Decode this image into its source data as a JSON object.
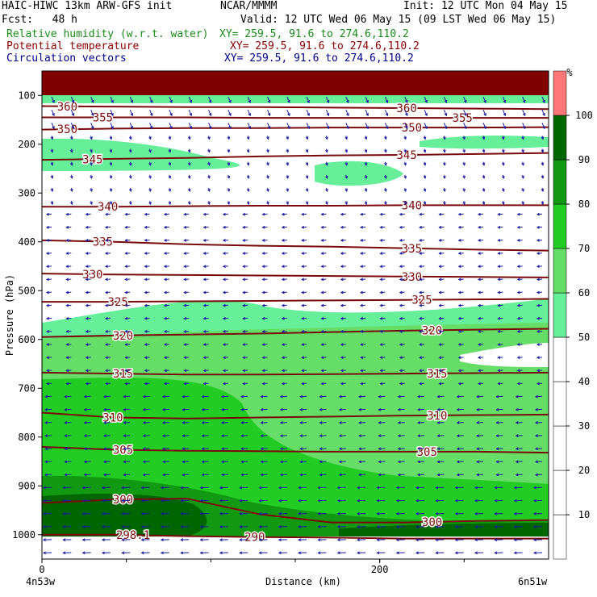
{
  "header": {
    "model": "HAIC-HIWC 13km ARW-GFS init",
    "org": "NCAR/MMMM",
    "init": "Init: 12 UTC Mon 04 May 15",
    "fcst": "Fcst:   48 h",
    "valid": "Valid: 12 UTC Wed 06 May 15 (09 LST Wed 06 May 15)",
    "rh_label": "Relative humidity (w.r.t. water)",
    "rh_xy": "XY= 259.5, 91.6 to 274.6,110.2",
    "theta_label": "Potential temperature",
    "theta_xy": "XY= 259.5, 91.6 to 274.6,110.2",
    "circ_label": "Circulation vectors",
    "circ_xy": "XY= 259.5, 91.6 to 274.6,110.2"
  },
  "chart_data": {
    "type": "heatmap",
    "title": "Relative humidity (w.r.t. water)",
    "xlabel": "Distance (km)",
    "ylabel": "Pressure (hPa)",
    "x_ticks": [
      "0",
      "200"
    ],
    "x_start_label": "4n53w",
    "x_end_label": "6n51w",
    "xlim": [
      0,
      300
    ],
    "y_ticks": [
      "100",
      "200",
      "300",
      "400",
      "500",
      "600",
      "700",
      "800",
      "900",
      "1000"
    ],
    "ylim": [
      1050,
      50
    ],
    "colorbar": {
      "unit": "%",
      "levels": [
        10,
        20,
        30,
        40,
        50,
        60,
        70,
        80,
        90,
        100
      ],
      "colors": [
        "#ffffff",
        "#ffffff",
        "#ffffff",
        "#ffffff",
        "#ffffff",
        "#66ee99",
        "#66dd66",
        "#22cc22",
        "#119911",
        "#006600",
        "#ff7777"
      ]
    },
    "theta_contours": [
      {
        "label": "290",
        "y": [
          1000,
          1000,
          1003,
          1005,
          1006,
          1008,
          1008,
          1008
        ]
      },
      {
        "label": "298.1",
        "y": [
          1000,
          1000,
          1003,
          1005,
          1006,
          1008,
          1008,
          1008
        ]
      },
      {
        "label": "300",
        "y": [
          935,
          928,
          926,
          958,
          975,
          975,
          972,
          970
        ]
      },
      {
        "label": "305",
        "y": [
          820,
          826,
          828,
          829,
          830,
          830,
          830,
          832
        ]
      },
      {
        "label": "310",
        "y": [
          750,
          760,
          762,
          760,
          758,
          756,
          755,
          754
        ]
      },
      {
        "label": "315",
        "y": [
          668,
          670,
          672,
          672,
          671,
          670,
          669,
          668
        ]
      },
      {
        "label": "320",
        "y": [
          595,
          592,
          590,
          588,
          585,
          582,
          580,
          578
        ]
      },
      {
        "label": "325",
        "y": [
          523,
          523,
          522,
          521,
          520,
          519,
          518,
          517
        ]
      },
      {
        "label": "330",
        "y": [
          465,
          467,
          468,
          469,
          470,
          471,
          472,
          473
        ]
      },
      {
        "label": "335",
        "y": [
          397,
          400,
          405,
          408,
          410,
          413,
          416,
          418
        ]
      },
      {
        "label": "340",
        "y": [
          328,
          328,
          327,
          326,
          326,
          325,
          325,
          325
        ]
      },
      {
        "label": "345",
        "y": [
          232,
          230,
          228,
          225,
          223,
          222,
          220,
          218
        ]
      },
      {
        "label": "350",
        "y": [
          170,
          168,
          167,
          167,
          166,
          166,
          166,
          165
        ]
      },
      {
        "label": "355",
        "y": [
          145,
          145,
          145,
          146,
          146,
          146,
          146,
          146
        ]
      },
      {
        "label": "360",
        "y": [
          122,
          123,
          124,
          124,
          125,
          126,
          127,
          128
        ]
      }
    ]
  }
}
